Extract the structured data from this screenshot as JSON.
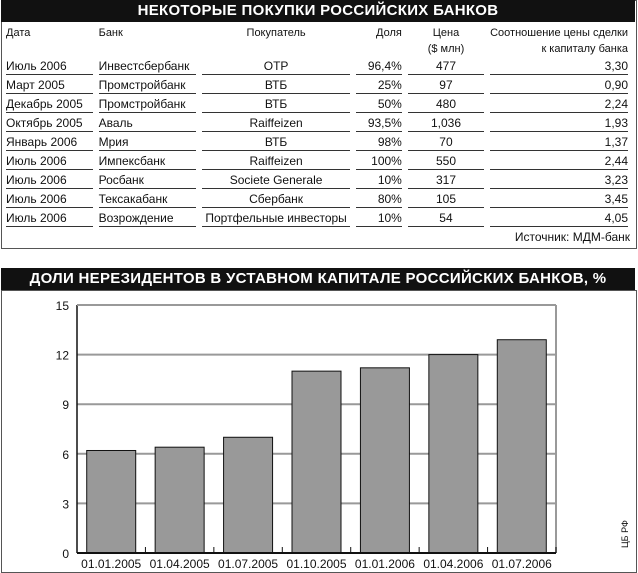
{
  "table": {
    "title": "НЕКОТОРЫЕ ПОКУПКИ РОССИЙСКИХ БАНКОВ",
    "headers": [
      "Дата",
      "Банк",
      "Покупатель",
      "Доля",
      "Цена",
      "Соотношение цены сделки"
    ],
    "headers2": [
      "",
      "",
      "",
      "",
      "($ млн)",
      "к капиталу банка"
    ],
    "rows": [
      [
        "Июль 2006",
        "Инвестсбербанк",
        "OTP",
        "96,4%",
        "477",
        "3,30"
      ],
      [
        "Март 2005",
        "Промстройбанк",
        "ВТБ",
        "25%",
        "97",
        "0,90"
      ],
      [
        "Декабрь 2005",
        "Промстройбанк",
        "ВТБ",
        "50%",
        "480",
        "2,24"
      ],
      [
        "Октябрь 2005",
        "Аваль",
        "Raiffeizen",
        "93,5%",
        "1,036",
        "1,93"
      ],
      [
        "Январь 2006",
        "Мрия",
        "ВТБ",
        "98%",
        "70",
        "1,37"
      ],
      [
        "Июль 2006",
        "Импексбанк",
        "Raiffeizen",
        "100%",
        "550",
        "2,44"
      ],
      [
        "Июль 2006",
        "Росбанк",
        "Societe Generale",
        "10%",
        "317",
        "3,23"
      ],
      [
        "Июль 2006",
        "Тексакабанк",
        "Сбербанк",
        "80%",
        "105",
        "3,45"
      ],
      [
        "Июль 2006",
        "Возрождение",
        "Портфельные инвесторы",
        "10%",
        "54",
        "4,05"
      ]
    ],
    "source": "Источник: МДМ-банк"
  },
  "chart_data": {
    "type": "bar",
    "title": "ДОЛИ НЕРЕЗИДЕНТОВ В УСТАВНОМ КАПИТАЛЕ  РОССИЙСКИХ БАНКОВ, %",
    "categories": [
      "01.01.2005",
      "01.04.2005",
      "01.07.2005",
      "01.10.2005",
      "01.01.2006",
      "01.04.2006",
      "01.07.2006"
    ],
    "values": [
      6.2,
      6.4,
      7.0,
      11.0,
      11.2,
      12.0,
      12.9
    ],
    "ylim": [
      0,
      15
    ],
    "yticks": [
      "0",
      "3",
      "6",
      "9",
      "12",
      "15"
    ],
    "grid": true,
    "bar_color": "#999999",
    "credit": "ЦБ РФ"
  }
}
